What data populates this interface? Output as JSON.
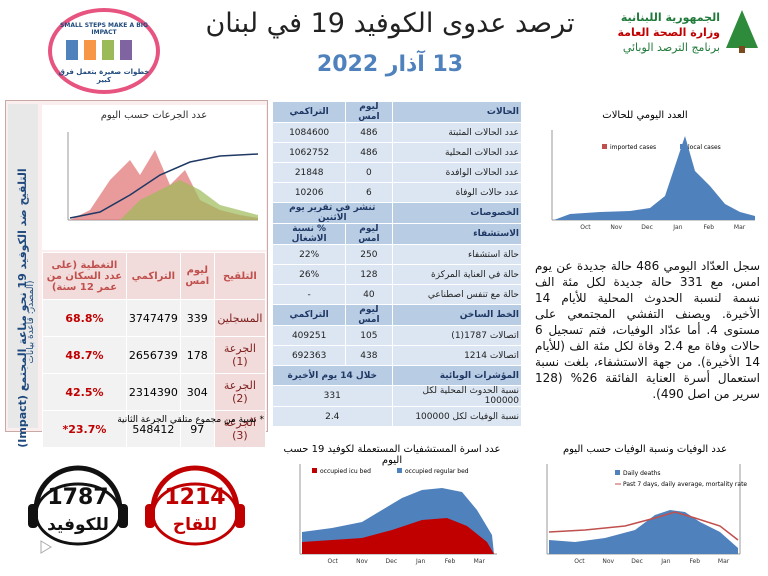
{
  "header": {
    "title": "ترصد عدوى الكوفيد 19 في لبنان",
    "date": "13 آذار 2022",
    "ministry": [
      "الجمهورية اللبنانية",
      "وزارة الصحة العامة",
      "برنامج الترصد الوبائي"
    ],
    "campaign": {
      "en": "SMALL STEPS MAKE A BIG IMPACT",
      "ar": "خطوات صغيرة بتعمل فرق كبير"
    }
  },
  "cases_table": {
    "sections": [
      {
        "head": [
          "الحالات",
          "ليوم امس",
          "التراكمي"
        ],
        "rows": [
          [
            "عدد الحالات المثبتة",
            486,
            1084600
          ],
          [
            "عدد الحالات المحلية",
            486,
            1062752
          ],
          [
            "عدد الحالات الوافدة",
            0,
            21848
          ],
          [
            "عدد حالات الوفاة",
            6,
            10206
          ]
        ]
      },
      {
        "head": [
          "الخصوصات",
          "تنشر في تقرير يوم الاثنين"
        ],
        "rows": []
      },
      {
        "head": [
          "الاستشفاء",
          "ليوم امس",
          "% نسبة الاشغال"
        ],
        "rows": [
          [
            "حالة استشفاء",
            250,
            "22%"
          ],
          [
            "حالة في العناية المركزة",
            128,
            "26%"
          ],
          [
            "حالة مع تنفس اصطناعي",
            40,
            "-"
          ]
        ]
      },
      {
        "head": [
          "الخط الساخن",
          "ليوم امس",
          "التراكمي"
        ],
        "rows": [
          [
            "اتصالات 1787(1)",
            105,
            409251
          ],
          [
            "اتصالات 1214",
            438,
            692363
          ]
        ]
      },
      {
        "head": [
          "المؤشرات الوبائية",
          "خلال 14 يوم الأخيرة"
        ],
        "rows": [
          [
            "نسبة الحدوث المحلية لكل 100000",
            331
          ],
          [
            "نسبة الوفيات لكل 100000",
            2.4
          ]
        ]
      }
    ]
  },
  "vaccination": {
    "side_title": "التلقيح ضد الكوفيد 19 نحو مناعة المجتمع (Impact)",
    "source": "(المصدر: قاعدة بيانات",
    "chart_title": "عدد الجرعات حسب اليوم",
    "head": [
      "التلقيح",
      "ليوم امس",
      "التراكمي",
      "التغطية (على عدد السكان من عمر 12 سنة)"
    ],
    "rows": [
      [
        "المسجلين",
        339,
        3747479,
        "68.8%"
      ],
      [
        "الجرعة (1)",
        178,
        2656739,
        "48.7%"
      ],
      [
        "الجرعة (2)",
        304,
        2314390,
        "42.5%"
      ],
      [
        "الجرعة (3)",
        97,
        548412,
        "23.7%*"
      ]
    ],
    "footnote": "* نسبة من مجموع متلقي الجرعة الثانية"
  },
  "summary": "سجل العدّاد اليومي 486 حالة جديدة عن يوم امس، مع 331 حالة جديدة لكل مئة الف نسمة لنسبة الحدوث المحلية للأيام 14 الأخيرة. ويصنف التفشي المجتمعي على مستوى 4. أما عدّاد الوفيات، فتم تسجيل 6 حالات وفاة مع 2.4 وفاة لكل مئة الف (للأيام 14 الأخيرة). من جهة الاستشفاء، بلغت نسبة استعمال أسرة العناية الفائقة 26% (128 سرير من اصل 490).",
  "charts": {
    "daily_cases": {
      "title": "العدد اليومي للحالات",
      "legend": [
        "imported cases",
        "local cases"
      ],
      "x_labels": [
        "Oct",
        "Nov",
        "Dec",
        "Jan",
        "Feb",
        "Mar"
      ]
    },
    "beds": {
      "title": "عدد اسرة المستشفيات المستعملة لكوفيد 19 حسب اليوم",
      "legend": [
        "occupied icu bed",
        "occupied regular bed"
      ],
      "x_labels": [
        "Oct",
        "Nov",
        "Dec",
        "Jan",
        "Feb",
        "Mar"
      ]
    },
    "deaths": {
      "title": "عدد الوفيات ونسبة الوفيات حسب اليوم",
      "legend": [
        "Daily deaths",
        "Past 7 days, daily average, mortality rate"
      ],
      "x_labels": [
        "Oct",
        "Nov",
        "Dec",
        "Jan",
        "Feb",
        "Mar"
      ]
    }
  },
  "hotlines": [
    {
      "number": "1787",
      "label": "للكوفيد"
    },
    {
      "number": "1214",
      "label": "للقاح"
    }
  ]
}
